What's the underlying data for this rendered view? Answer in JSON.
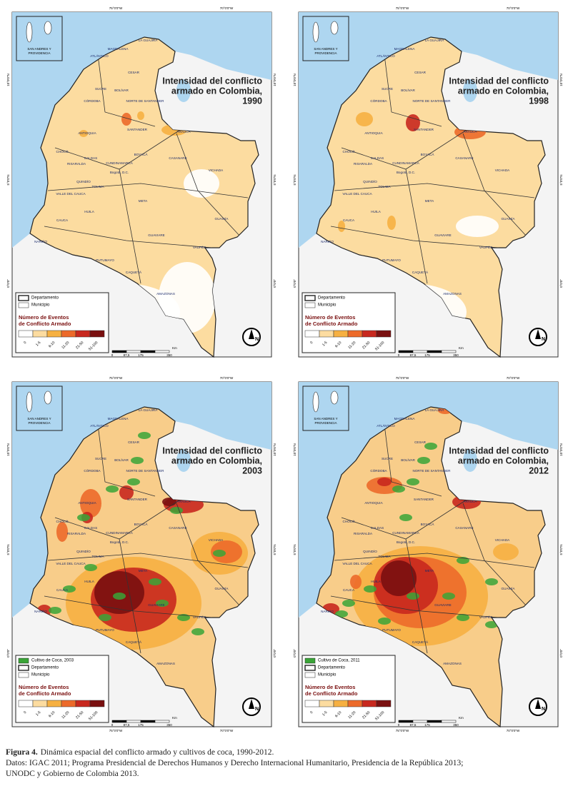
{
  "panels": [
    {
      "title": [
        "Intensidad del conflicto",
        "armado en Colombia,",
        "1990"
      ],
      "legend_items": [
        {
          "label": "Departamento",
          "kind": "dept"
        },
        {
          "label": "Municipio",
          "kind": "muni"
        }
      ]
    },
    {
      "title": [
        "Intensidad del conflicto",
        "armado en Colombia,",
        "1998"
      ],
      "legend_items": [
        {
          "label": "Departamento",
          "kind": "dept"
        },
        {
          "label": "Municipio",
          "kind": "muni"
        }
      ]
    },
    {
      "title": [
        "Intensidad del conflicto",
        "armado en Colombia,",
        "2003"
      ],
      "legend_items": [
        {
          "label": "Cultivo de Coca, 2003",
          "kind": "coca"
        },
        {
          "label": "Departamento",
          "kind": "dept"
        },
        {
          "label": "Municipio",
          "kind": "muni"
        }
      ]
    },
    {
      "title": [
        "Intensidad del conflicto",
        "armado en Colombia,",
        "2012"
      ],
      "legend_items": [
        {
          "label": "Cultivo de Coca, 2011",
          "kind": "coca"
        },
        {
          "label": "Departamento",
          "kind": "dept"
        },
        {
          "label": "Municipio",
          "kind": "muni"
        }
      ]
    }
  ],
  "inset_label": [
    "SAN ANDRES Y",
    "PROVIDENCIA"
  ],
  "legend_title": [
    "Número de Eventos",
    "de Conflicto Armado"
  ],
  "classes": [
    {
      "label": "0",
      "color": "#ffffff"
    },
    {
      "label": "1-5",
      "color": "#fcdca0"
    },
    {
      "label": "6-10",
      "color": "#f6b041"
    },
    {
      "label": "11-20",
      "color": "#ec6a2a"
    },
    {
      "label": "21-50",
      "color": "#c8281e"
    },
    {
      "label": "51-100",
      "color": "#7a1010"
    }
  ],
  "coca_color": "#3aa537",
  "scale": [
    "0",
    "87,5",
    "175",
    "350",
    "Km"
  ],
  "longitudes": [
    "75°0'0\"W",
    "70°0'0\"W"
  ],
  "latitudes": [
    "10°0'0\"N",
    "5°0'0\"N",
    "0°0'0\""
  ],
  "north": "N",
  "departments": [
    "LA GUAJIRA",
    "MAGDALENA",
    "ATLÁNTICO",
    "CESAR",
    "SUCRE",
    "BOLÍVAR",
    "CÓRDOBA",
    "NORTE DE SANTANDER",
    "ANTIOQUIA",
    "SANTANDER",
    "ARAUCA",
    "CHOCÓ",
    "BOYACÁ",
    "CASANARE",
    "CALDAS",
    "RISARALDA",
    "CUNDINAMARCA",
    "Bogotá, D.C.",
    "VICHADA",
    "VALLE DEL CAUCA",
    "QUINDÍO",
    "TOLIMA",
    "META",
    "HUILA",
    "CAUCA",
    "GUAINÍA",
    "GUAVIARE",
    "NARIÑO",
    "VAUPÉS",
    "PUTUMAYO",
    "CAQUETÁ",
    "AMAZONAS"
  ],
  "caption": {
    "label": "Figura 4.",
    "text": "Dinámica espacial del conflicto armado y cultivos de coca, 1990-2012.",
    "sources": [
      "Datos: IGAC 2011; Programa Presidencial de Derechos Humanos y Derecho Internacional Humanitario, Presidencia de la República 2013;",
      "UNODC y Gobierno de Colombia 2013."
    ]
  }
}
